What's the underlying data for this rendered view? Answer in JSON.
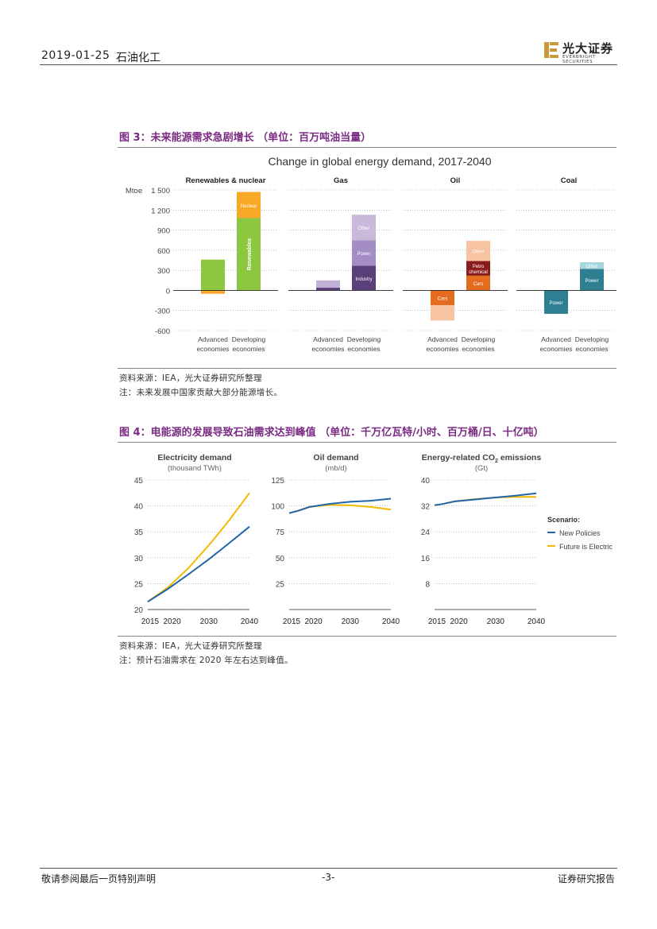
{
  "header": {
    "date": "2019-01-25",
    "sector": "石油化工",
    "logo_cn": "光大证券",
    "logo_en": "EVERBRIGHT SECURITIES",
    "logo_color": "#c79a3a"
  },
  "figure3": {
    "caption": "图 3：未来能源需求急剧增长 （单位：百万吨油当量）",
    "chart_title": "Change in global energy demand, 2017-2040",
    "source": "资料来源：IEA，光大证券研究所整理",
    "note": "注：未来发展中国家贡献大部分能源增长。",
    "chart_data": {
      "type": "bar",
      "ylabel": "Mtoe",
      "ylim": [
        -600,
        1500
      ],
      "yticks": [
        1500,
        1200,
        900,
        600,
        300,
        0,
        -300,
        -600
      ],
      "ytick_labels": [
        "1 500",
        "1 200",
        "900",
        "600",
        "300",
        "0",
        "-300",
        "-600"
      ],
      "categories": [
        "Advanced economies",
        "Developing economies"
      ],
      "cat_label_lines": [
        [
          "Advanced",
          "economies"
        ],
        [
          "Developing",
          "economies"
        ]
      ],
      "panels": [
        {
          "title": "Renewables & nuclear",
          "stacks": [
            [
              {
                "name": "",
                "value": 460,
                "color": "#8dc63f"
              },
              {
                "name": "",
                "value": -50,
                "color": "#f7a824"
              }
            ],
            [
              {
                "name": "Renewables",
                "value": 1080,
                "color": "#8dc63f",
                "vertical": true
              },
              {
                "name": "Nuclear",
                "value": 390,
                "color": "#f7a824"
              }
            ]
          ]
        },
        {
          "title": "Gas",
          "stacks": [
            [
              {
                "name": "",
                "value": 40,
                "color": "#5b3f7a"
              },
              {
                "name": "",
                "value": 110,
                "color": "#c2b1d6"
              }
            ],
            [
              {
                "name": "Industry",
                "value": 370,
                "color": "#5b3f7a"
              },
              {
                "name": "Power",
                "value": 380,
                "color": "#a48cc4"
              },
              {
                "name": "Other",
                "value": 380,
                "color": "#c9badb"
              }
            ]
          ]
        },
        {
          "title": "Oil",
          "stacks": [
            [
              {
                "name": "Cars",
                "value": -220,
                "color": "#e46c1e"
              },
              {
                "name": "",
                "value": -230,
                "color": "#f7c3a0"
              }
            ],
            [
              {
                "name": "Cars",
                "value": 220,
                "color": "#e46c1e"
              },
              {
                "name": "Petro chemical",
                "value": 220,
                "color": "#8b1c1c"
              },
              {
                "name": "Other",
                "value": 300,
                "color": "#f7c3a0"
              }
            ]
          ]
        },
        {
          "title": "Coal",
          "stacks": [
            [
              {
                "name": "Power",
                "value": -350,
                "color": "#2f7f93"
              }
            ],
            [
              {
                "name": "Power",
                "value": 320,
                "color": "#2f7f93"
              },
              {
                "name": "Other",
                "value": 100,
                "color": "#a7d5de"
              }
            ]
          ]
        }
      ]
    }
  },
  "figure4": {
    "caption": "图 4：电能源的发展导致石油需求达到峰值 （单位：千万亿瓦特/小时、百万桶/日、十亿吨）",
    "source": "资料来源：IEA，光大证券研究所整理",
    "note": "注：预计石油需求在 2020 年左右达到峰值。",
    "legend_title": "Scenario:",
    "chart_data": [
      {
        "type": "line",
        "title": "Electricity demand",
        "subtitle": "(thousand TWh)",
        "ylim": [
          20,
          45
        ],
        "yticks": [
          20,
          25,
          30,
          35,
          40,
          45
        ],
        "xticks": [
          2015,
          2020,
          2030,
          2040
        ],
        "series": [
          {
            "name": "New Policies",
            "color": "#1f66ad",
            "x": [
              2015,
              2020,
              2025,
              2030,
              2035,
              2040
            ],
            "y": [
              21.5,
              24,
              26.8,
              29.7,
              32.8,
              36.0
            ]
          },
          {
            "name": "Future is Electric",
            "color": "#f5b800",
            "x": [
              2015,
              2020,
              2025,
              2030,
              2035,
              2040
            ],
            "y": [
              21.5,
              24.3,
              28,
              32.4,
              37.2,
              42.5
            ]
          }
        ]
      },
      {
        "type": "line",
        "title": "Oil demand",
        "subtitle": "(mb/d)",
        "ylim": [
          0,
          125
        ],
        "yticks": [
          25,
          50,
          75,
          100,
          125
        ],
        "xticks": [
          2015,
          2020,
          2030,
          2040
        ],
        "series": [
          {
            "name": "New Policies",
            "color": "#1f66ad",
            "x": [
              2015,
              2017,
              2020,
              2025,
              2030,
              2035,
              2040
            ],
            "y": [
              93,
              95,
              99,
              102,
              104,
              105,
              107
            ]
          },
          {
            "name": "Future is Electric",
            "color": "#f5b800",
            "x": [
              2015,
              2017,
              2020,
              2025,
              2030,
              2035,
              2040
            ],
            "y": [
              93,
              95,
              99,
              101,
              100.5,
              99,
              96.5
            ]
          }
        ]
      },
      {
        "type": "line",
        "title": "Energy-related CO",
        "title_sub": "2",
        "title_suffix": " emissions",
        "subtitle": "(Gt)",
        "ylim": [
          0,
          40
        ],
        "yticks": [
          8,
          16,
          24,
          32,
          40
        ],
        "xticks": [
          2015,
          2020,
          2030,
          2040
        ],
        "series": [
          {
            "name": "New Policies",
            "color": "#1f66ad",
            "x": [
              2015,
              2017,
              2020,
              2025,
              2030,
              2035,
              2040
            ],
            "y": [
              32.2,
              32.6,
              33.4,
              34,
              34.6,
              35.2,
              35.9
            ]
          },
          {
            "name": "Future is Electric",
            "color": "#f5b800",
            "x": [
              2015,
              2017,
              2020,
              2025,
              2030,
              2035,
              2040
            ],
            "y": [
              32.2,
              32.6,
              33.4,
              34.1,
              34.6,
              34.8,
              34.8
            ]
          }
        ]
      }
    ]
  },
  "footer": {
    "disclaimer": "敬请参阅最后一页特别声明",
    "page": "-3-",
    "report_type": "证券研究报告"
  }
}
